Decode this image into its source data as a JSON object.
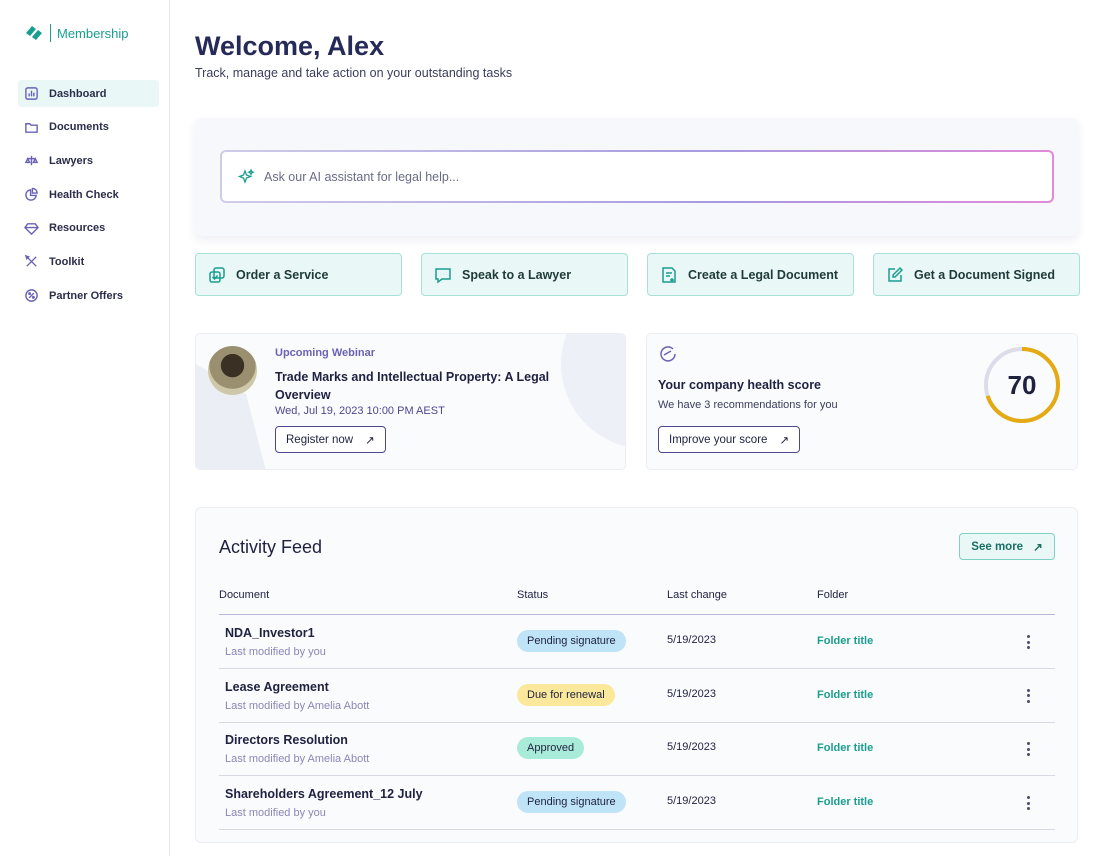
{
  "brand": {
    "name": "Membership",
    "color": "#1a9e8f"
  },
  "sidebar": {
    "items": [
      {
        "label": "Dashboard",
        "icon": "bar-chart-icon",
        "active": true
      },
      {
        "label": "Documents",
        "icon": "folder-icon"
      },
      {
        "label": "Lawyers",
        "icon": "scale-icon"
      },
      {
        "label": "Health Check",
        "icon": "pie-chart-icon"
      },
      {
        "label": "Resources",
        "icon": "diamond-icon"
      },
      {
        "label": "Toolkit",
        "icon": "tools-icon"
      },
      {
        "label": "Partner Offers",
        "icon": "discount-icon"
      }
    ]
  },
  "header": {
    "title": "Welcome, Alex",
    "subtitle": "Track, manage and take action on your outstanding tasks"
  },
  "ai": {
    "placeholder": "Ask our AI assistant for legal help..."
  },
  "actions": [
    {
      "label": "Order a Service",
      "icon": "copy-check-icon"
    },
    {
      "label": "Speak to a Lawyer",
      "icon": "chat-icon"
    },
    {
      "label": "Create a Legal Document",
      "icon": "document-plus-icon"
    },
    {
      "label": "Get a Document Signed",
      "icon": "edit-icon"
    }
  ],
  "webinar": {
    "label": "Upcoming Webinar",
    "title": "Trade Marks and Intellectual Property: A Legal Overview",
    "date": "Wed, Jul 19, 2023 10:00 PM AEST",
    "button": "Register now"
  },
  "health": {
    "title": "Your company health score",
    "subtitle": "We have 3 recommendations for you",
    "button": "Improve your score",
    "score": "70",
    "score_percent": 70,
    "ring_color": "#e5a913"
  },
  "feed": {
    "title": "Activity Feed",
    "see_more": "See more",
    "columns": [
      "Document",
      "Status",
      "Last change",
      "Folder"
    ],
    "rows": [
      {
        "name": "NDA_Investor1",
        "by": "Last modified by you",
        "status": "Pending signature",
        "status_color": "#bfe3f7",
        "date": "5/19/2023",
        "folder": "Folder title"
      },
      {
        "name": "Lease Agreement",
        "by": "Last modified by Amelia Abott",
        "status": "Due for renewal",
        "status_color": "#fbe89a",
        "date": "5/19/2023",
        "folder": "Folder title"
      },
      {
        "name": "Directors Resolution",
        "by": "Last modified by Amelia Abott",
        "status": "Approved",
        "status_color": "#a9ebd9",
        "date": "5/19/2023",
        "folder": "Folder title"
      },
      {
        "name": "Shareholders Agreement_12 July",
        "by": "Last modified by you",
        "status": "Pending signature",
        "status_color": "#bfe3f7",
        "date": "5/19/2023",
        "folder": "Folder title"
      }
    ]
  }
}
